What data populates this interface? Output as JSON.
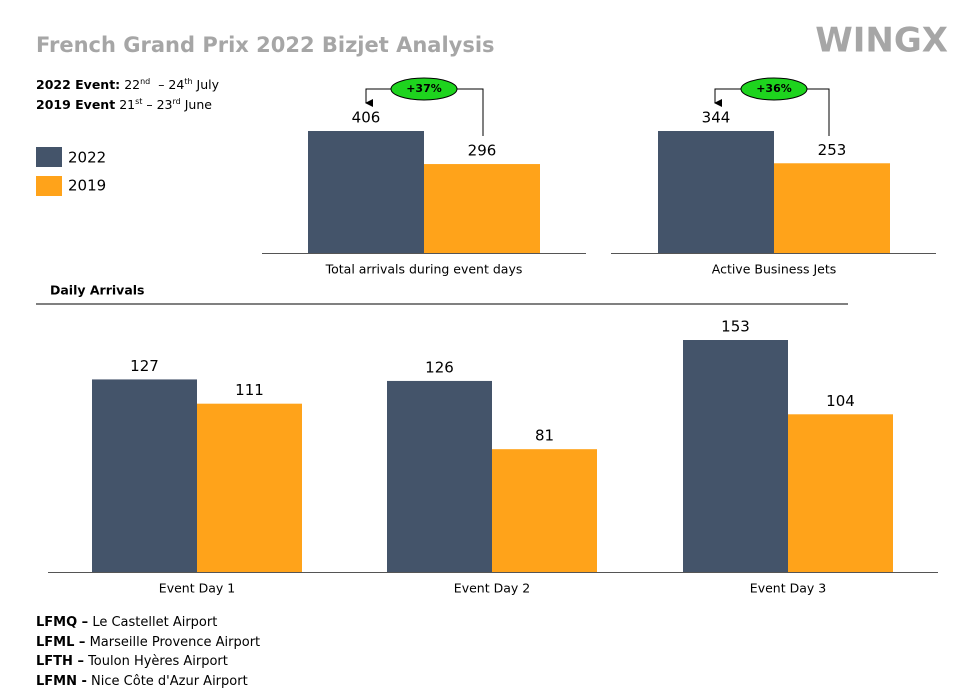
{
  "title": "French Grand Prix 2022 Bizjet Analysis",
  "brand": "WINGX",
  "events": [
    {
      "label": "2022 Event:",
      "parts": [
        "22",
        "nd",
        "  – 24",
        "th",
        " July"
      ]
    },
    {
      "label": "2019 Event",
      "parts": [
        "21",
        "st",
        " – 23",
        "rd",
        " June"
      ]
    }
  ],
  "chart_data": [
    {
      "type": "bar",
      "categories": [
        "Total arrivals during event days"
      ],
      "annotation": "+37%",
      "series": [
        {
          "name": "2022",
          "color": "#44546a",
          "values": [
            406
          ]
        },
        {
          "name": "2019",
          "color": "#ffa31a",
          "values": [
            296
          ]
        }
      ]
    },
    {
      "type": "bar",
      "categories": [
        "Active Business Jets"
      ],
      "annotation": "+36%",
      "series": [
        {
          "name": "2022",
          "color": "#44546a",
          "values": [
            344
          ]
        },
        {
          "name": "2019",
          "color": "#ffa31a",
          "values": [
            253
          ]
        }
      ]
    },
    {
      "type": "bar",
      "title": "Daily Arrivals",
      "categories": [
        "Event Day 1",
        "Event Day 2",
        "Event Day 3"
      ],
      "series": [
        {
          "name": "2022",
          "color": "#44546a",
          "values": [
            127,
            126,
            153
          ]
        },
        {
          "name": "2019",
          "color": "#ffa31a",
          "values": [
            111,
            81,
            104
          ]
        }
      ]
    }
  ],
  "airports": [
    {
      "code": "LFMQ –",
      "name": "Le Castellet Airport"
    },
    {
      "code": "LFML –",
      "name": "Marseille Provence Airport"
    },
    {
      "code": "LFTH –",
      "name": "Toulon Hyères Airport"
    },
    {
      "code": "LFMN -",
      "name": "Nice Côte d'Azur Airport"
    }
  ]
}
